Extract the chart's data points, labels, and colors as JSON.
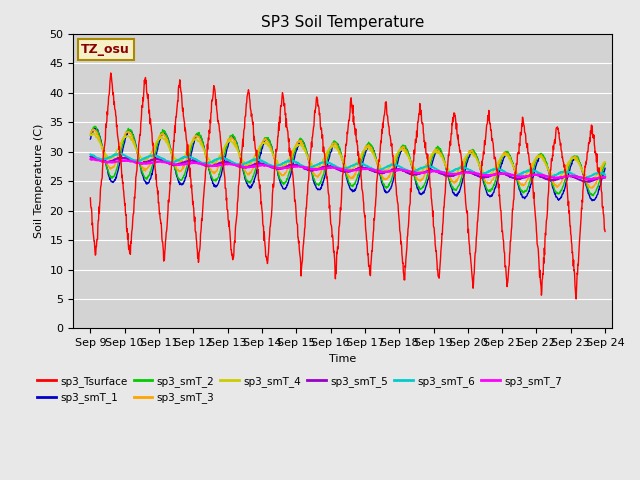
{
  "title": "SP3 Soil Temperature",
  "xlabel": "Time",
  "ylabel": "Soil Temperature (C)",
  "ylim": [
    0,
    50
  ],
  "xlim_days": [
    8.5,
    24.2
  ],
  "xtick_labels": [
    "Sep 9",
    "Sep 10",
    "Sep 11",
    "Sep 12",
    "Sep 13",
    "Sep 14",
    "Sep 15",
    "Sep 16",
    "Sep 17",
    "Sep 18",
    "Sep 19",
    "Sep 20",
    "Sep 21",
    "Sep 22",
    "Sep 23",
    "Sep 24"
  ],
  "xtick_positions": [
    9,
    10,
    11,
    12,
    13,
    14,
    15,
    16,
    17,
    18,
    19,
    20,
    21,
    22,
    23,
    24
  ],
  "annotation_text": "TZ_osu",
  "annotation_box_color": "#f5f0c8",
  "annotation_text_color": "#8b0000",
  "bg_color": "#e8e8e8",
  "plot_bg_color": "#d3d3d3",
  "grid_color": "#ffffff",
  "series_colors": {
    "sp3_Tsurface": "#ff0000",
    "sp3_smT_1": "#0000cc",
    "sp3_smT_2": "#00cc00",
    "sp3_smT_3": "#ffa500",
    "sp3_smT_4": "#cccc00",
    "sp3_smT_5": "#9900cc",
    "sp3_smT_6": "#00cccc",
    "sp3_smT_7": "#ff00ff"
  }
}
